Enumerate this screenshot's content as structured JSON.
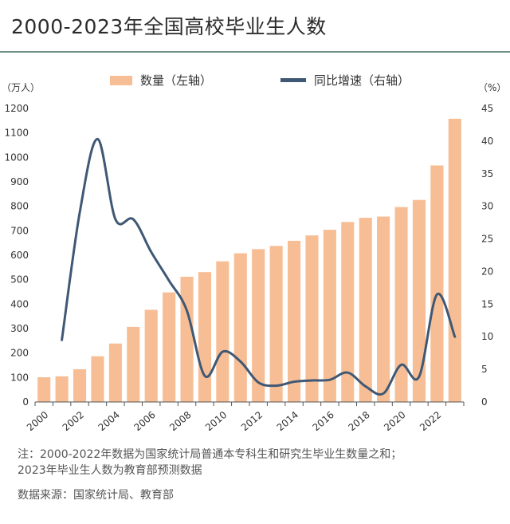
{
  "title": "2000-2023年全国高校毕业生人数",
  "chart_data": {
    "type": "bar+line",
    "left_unit": "（万人）",
    "right_unit": "（%）",
    "legend": [
      {
        "label": "数量（左轴）",
        "color": "#f7be95",
        "kind": "bar"
      },
      {
        "label": "同比增速（右轴）",
        "color": "#3f5874",
        "kind": "line"
      }
    ],
    "categories": [
      2000,
      2001,
      2002,
      2003,
      2004,
      2005,
      2006,
      2007,
      2008,
      2009,
      2010,
      2011,
      2012,
      2013,
      2014,
      2015,
      2016,
      2017,
      2018,
      2019,
      2020,
      2021,
      2022,
      2023
    ],
    "x_tick_labels": [
      "2000",
      "2002",
      "2004",
      "2006",
      "2008",
      "2010",
      "2012",
      "2014",
      "2016",
      "2018",
      "2020",
      "2022"
    ],
    "series": [
      {
        "name": "数量（左轴）",
        "axis": "left",
        "type": "bar",
        "values": [
          101,
          105,
          134,
          187,
          239,
          307,
          377,
          448,
          512,
          531,
          575,
          608,
          625,
          638,
          659,
          681,
          704,
          736,
          753,
          758,
          797,
          826,
          967,
          1158
        ]
      },
      {
        "name": "同比增速（右轴）",
        "axis": "right",
        "type": "line",
        "values": [
          null,
          9.5,
          29,
          40.3,
          28,
          28,
          23,
          18.6,
          14,
          4,
          7.7,
          6.2,
          3,
          2.5,
          3.1,
          3.3,
          3.4,
          4.5,
          2.4,
          1.3,
          5.7,
          3.9,
          16.5,
          10
        ]
      }
    ],
    "left_axis": {
      "min": 0,
      "max": 1200,
      "ticks": [
        0,
        100,
        200,
        300,
        400,
        500,
        600,
        700,
        800,
        900,
        1000,
        1100,
        1200
      ]
    },
    "right_axis": {
      "min": 0,
      "max": 45,
      "ticks": [
        0,
        5,
        10,
        15,
        20,
        25,
        30,
        35,
        40,
        45
      ]
    },
    "grid": false,
    "legend_position": "top"
  },
  "notes": {
    "line1": "注：2000-2022年数据为国家统计局普通本专科生和研究生毕业生数量之和；",
    "line2": "2023年毕业生人数为教育部预测数据"
  },
  "source": "数据来源：国家统计局、教育部"
}
